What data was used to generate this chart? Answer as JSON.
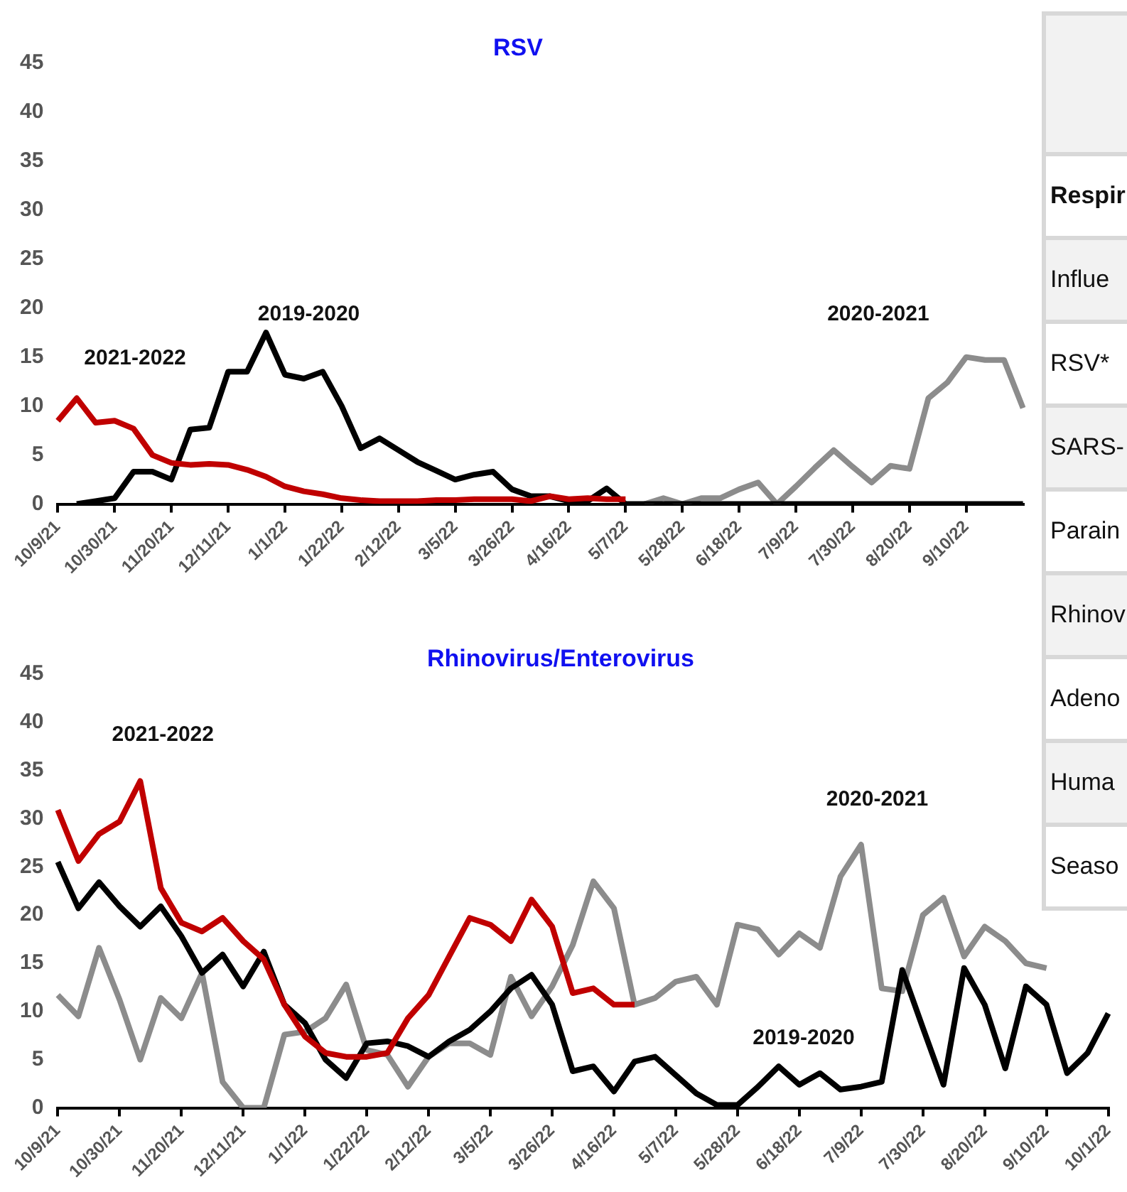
{
  "chart_data": [
    {
      "type": "line",
      "title": "RSV",
      "categories": [
        "10/9/21",
        null,
        null,
        "10/30/21",
        null,
        null,
        "11/20/21",
        null,
        null,
        "12/11/21",
        null,
        null,
        "1/1/22",
        null,
        null,
        "1/22/22",
        null,
        null,
        "2/12/22",
        null,
        null,
        "3/5/22",
        null,
        null,
        "3/26/22",
        null,
        null,
        "4/16/22",
        null,
        null,
        "5/7/22",
        null,
        null,
        "5/28/22",
        null,
        null,
        "6/18/22",
        null,
        null,
        "7/9/22",
        null,
        null,
        "7/30/22",
        null,
        null,
        "8/20/22",
        null,
        null,
        "9/10/22",
        null,
        null,
        null
      ],
      "series": [
        {
          "name": "2021-2022",
          "color": "#c00000",
          "values": [
            8.5,
            10.8,
            8.3,
            8.5,
            7.7,
            5,
            4.2,
            4.0,
            4.1,
            4.0,
            3.5,
            2.8,
            1.8,
            1.3,
            1.0,
            0.6,
            0.4,
            0.3,
            0.3,
            0.3,
            0.4,
            0.4,
            0.5,
            0.5,
            0.5,
            0.3,
            0.8,
            0.5,
            0.6,
            0.5,
            0.5,
            null,
            null,
            null,
            null,
            null,
            null,
            null,
            null,
            null,
            null,
            null,
            null,
            null,
            null,
            null,
            null,
            null,
            null,
            null,
            null,
            null
          ]
        },
        {
          "name": "2019-2020",
          "color": "#000000",
          "values": [
            null,
            0,
            0.3,
            0.6,
            3.3,
            3.3,
            2.5,
            7.6,
            7.8,
            13.5,
            13.5,
            17.5,
            13.2,
            12.8,
            13.5,
            10,
            5.7,
            6.7,
            5.5,
            4.3,
            3.4,
            2.5,
            3.0,
            3.3,
            1.5,
            0.8,
            0.8,
            0.3,
            0.3,
            1.6,
            0,
            0,
            0,
            0,
            0,
            0,
            0,
            0,
            0,
            0,
            0,
            0,
            0,
            0,
            0,
            0,
            0,
            0,
            0,
            0,
            0,
            0
          ]
        },
        {
          "name": "2020-2021",
          "color": "#8c8c8c",
          "values": [
            null,
            null,
            null,
            null,
            null,
            null,
            null,
            null,
            null,
            null,
            null,
            null,
            null,
            null,
            null,
            null,
            null,
            null,
            null,
            null,
            null,
            null,
            null,
            null,
            null,
            null,
            null,
            null,
            null,
            null,
            null,
            0,
            0.6,
            0,
            0.6,
            0.6,
            1.5,
            2.2,
            0,
            1.8,
            3.7,
            5.5,
            3.8,
            2.2,
            3.9,
            3.6,
            10.8,
            12.4,
            15.0,
            14.7,
            14.7,
            9.8
          ]
        }
      ],
      "ylim": [
        0,
        45
      ],
      "yticks": [
        0,
        5,
        10,
        15,
        20,
        25,
        30,
        35,
        40,
        45
      ],
      "marker": "none"
    },
    {
      "type": "line",
      "title": "Rhinovirus/Enterovirus",
      "categories": [
        "10/9/21",
        null,
        null,
        "10/30/21",
        null,
        null,
        "11/20/21",
        null,
        null,
        "12/11/21",
        null,
        null,
        "1/1/22",
        null,
        null,
        "1/22/22",
        null,
        null,
        "2/12/22",
        null,
        null,
        "3/5/22",
        null,
        null,
        "3/26/22",
        null,
        null,
        "4/16/22",
        null,
        null,
        "5/7/22",
        null,
        null,
        "5/28/22",
        null,
        null,
        "6/18/22",
        null,
        null,
        "7/9/22",
        null,
        null,
        "7/30/22",
        null,
        null,
        "8/20/22",
        null,
        null,
        "9/10/22",
        null,
        null,
        "10/1/22"
      ],
      "series": [
        {
          "name": "2021-2022",
          "color": "#c00000",
          "values": [
            30.9,
            25.6,
            28.4,
            29.7,
            33.9,
            22.8,
            19.2,
            18.3,
            19.7,
            17.3,
            15.4,
            10.7,
            7.4,
            5.7,
            5.3,
            5.3,
            5.7,
            9.3,
            11.7,
            15.7,
            19.7,
            19.0,
            17.3,
            21.6,
            18.8,
            11.9,
            12.4,
            10.7,
            10.7,
            null,
            null,
            null,
            null,
            null,
            null,
            null,
            null,
            null,
            null,
            null,
            null,
            null,
            null,
            null,
            null,
            null,
            null,
            null,
            null,
            null,
            null,
            null
          ]
        },
        {
          "name": "2019-2020",
          "color": "#000000",
          "values": [
            25.5,
            20.7,
            23.4,
            20.9,
            18.8,
            20.9,
            17.8,
            14.0,
            15.9,
            12.6,
            16.2,
            10.7,
            8.8,
            5.0,
            3.1,
            6.7,
            6.9,
            6.4,
            5.3,
            6.9,
            8.1,
            10.0,
            12.4,
            13.8,
            10.7,
            3.8,
            4.3,
            1.7,
            4.8,
            5.3,
            3.4,
            1.5,
            0.3,
            0.3,
            2.2,
            4.3,
            2.4,
            3.6,
            1.9,
            2.2,
            2.7,
            14.3,
            8.3,
            2.4,
            14.5,
            10.7,
            4.1,
            12.6,
            10.7,
            3.6,
            5.7,
            9.8
          ]
        },
        {
          "name": "2020-2021",
          "color": "#8c8c8c",
          "values": [
            11.7,
            9.5,
            16.6,
            11.2,
            5.0,
            11.4,
            9.3,
            14.0,
            2.7,
            0,
            0,
            7.6,
            7.9,
            9.3,
            12.8,
            6.0,
            5.5,
            2.2,
            5.3,
            6.7,
            6.7,
            5.5,
            13.6,
            9.5,
            12.6,
            16.9,
            23.5,
            20.7,
            10.7,
            11.4,
            13.1,
            13.6,
            10.7,
            19.0,
            18.5,
            15.9,
            18.1,
            16.6,
            24.0,
            27.3,
            12.4,
            12.1,
            20.0,
            21.8,
            15.7,
            18.8,
            17.3,
            15.0,
            14.5,
            null,
            null,
            null
          ]
        }
      ],
      "ylim": [
        0,
        45
      ],
      "yticks": [
        0,
        5,
        10,
        15,
        20,
        25,
        30,
        35,
        40,
        45
      ],
      "marker": "none"
    },
    {
      "type": "other",
      "categories": [
        null,
        "Respir",
        "Influe",
        "RSV*",
        "SARS-",
        "Parain",
        "Rhinov",
        "Adeno",
        "Huma",
        "Seaso"
      ]
    }
  ]
}
